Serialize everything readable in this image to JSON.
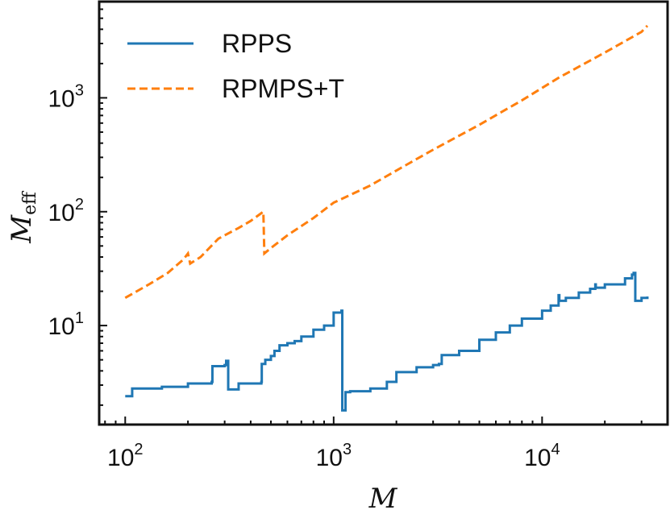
{
  "chart_data": {
    "type": "line",
    "xlabel": "M",
    "ylabel_main": "M",
    "ylabel_sub": "eff",
    "xscale": "log",
    "yscale": "log",
    "xlim": [
      75,
      40000
    ],
    "ylim": [
      1.35,
      7000
    ],
    "x_ticks": [
      {
        "value": 100,
        "base": "10",
        "exp": "2"
      },
      {
        "value": 1000,
        "base": "10",
        "exp": "3"
      },
      {
        "value": 10000,
        "base": "10",
        "exp": "4"
      }
    ],
    "y_ticks": [
      {
        "value": 10,
        "base": "10",
        "exp": "1"
      },
      {
        "value": 100,
        "base": "10",
        "exp": "2"
      },
      {
        "value": 1000,
        "base": "10",
        "exp": "3"
      }
    ],
    "grid": false,
    "legend_position": "top-left",
    "series": [
      {
        "name": "RPPS",
        "color": "#1f77b4",
        "style": "solid",
        "x": [
          100,
          106,
          108,
          150,
          200,
          260,
          262,
          300,
          305,
          310,
          312,
          350,
          450,
          452,
          470,
          500,
          520,
          550,
          600,
          650,
          700,
          800,
          900,
          1000,
          1090,
          1095,
          1100,
          1110,
          1140,
          1200,
          1500,
          1800,
          2000,
          2500,
          3000,
          3200,
          3300,
          4000,
          5000,
          6000,
          7000,
          8000,
          10000,
          11000,
          12000,
          12100,
          13000,
          15000,
          17000,
          18000,
          18100,
          20000,
          25000,
          27000,
          27500,
          28000,
          30000,
          32000
        ],
        "y": [
          2.4,
          2.4,
          2.8,
          2.9,
          3.1,
          3.2,
          4.4,
          4.5,
          4.9,
          4.9,
          2.75,
          3.1,
          3.2,
          4.6,
          5.0,
          5.4,
          6.0,
          6.7,
          7.0,
          7.3,
          8.0,
          9.2,
          10.0,
          13.0,
          13.5,
          13.5,
          1.8,
          1.8,
          2.6,
          2.65,
          2.8,
          3.2,
          3.9,
          4.3,
          4.5,
          4.6,
          5.5,
          6.0,
          7.5,
          8.7,
          10.0,
          11.5,
          13.5,
          15.0,
          18.5,
          16.5,
          17.5,
          19.5,
          21.0,
          23.0,
          21.5,
          23.0,
          26.0,
          28.0,
          29.0,
          16.5,
          17.5,
          18.0
        ]
      },
      {
        "name": "RPMPS+T",
        "color": "#ff7f0e",
        "style": "dashed",
        "x": [
          100,
          130,
          160,
          190,
          200,
          205,
          230,
          280,
          350,
          400,
          460,
          465,
          500,
          600,
          800,
          1000,
          1500,
          2000,
          3000,
          5000,
          8000,
          12000,
          20000,
          30000,
          32000
        ],
        "y": [
          17.5,
          23,
          29,
          38,
          43,
          35,
          40,
          58,
          72,
          83,
          100,
          43,
          48,
          62,
          88,
          120,
          170,
          230,
          350,
          580,
          950,
          1500,
          2500,
          3800,
          4300
        ]
      }
    ]
  }
}
